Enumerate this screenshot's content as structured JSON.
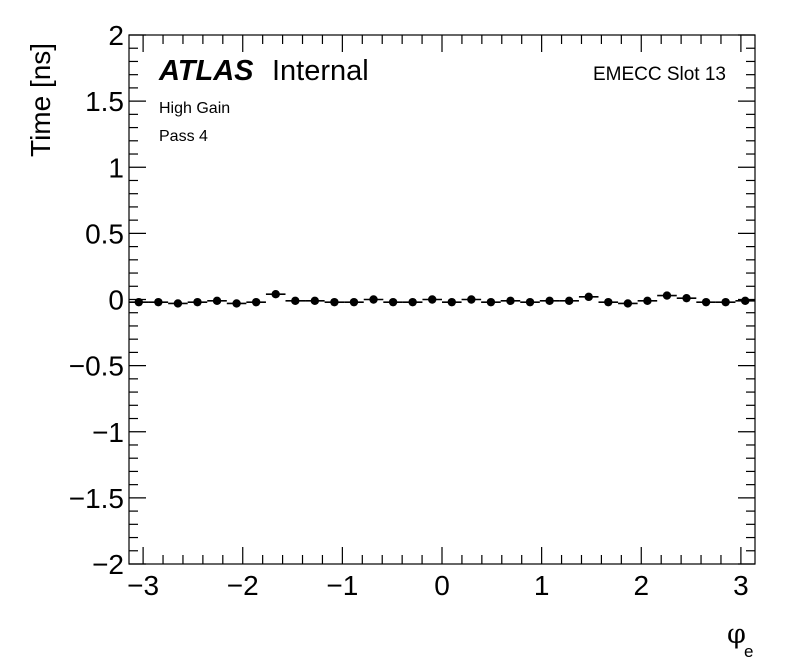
{
  "chart_data": {
    "type": "scatter",
    "title": "",
    "xlabel": "φ",
    "xlabel_subscript": "e",
    "ylabel": "Time [ns]",
    "xlim": [
      -3.1416,
      3.1416
    ],
    "ylim": [
      -2,
      2
    ],
    "x_ticks": [
      -3,
      -2,
      -1,
      0,
      1,
      2,
      3
    ],
    "x_tick_labels": [
      "−3",
      "−2",
      "−1",
      "0",
      "1",
      "2",
      "3"
    ],
    "y_ticks": [
      -2,
      -1.5,
      -1,
      -0.5,
      0,
      0.5,
      1,
      1.5,
      2
    ],
    "y_tick_labels": [
      "−2",
      "−1.5",
      "−1",
      "−0.5",
      "0",
      "0.5",
      "1",
      "1.5",
      "2"
    ],
    "grid": false,
    "legend": "none",
    "annotations": {
      "atlas": "ATLAS",
      "internal": "Internal",
      "line1": "High Gain",
      "line2": "Pass 4",
      "slot": "EMECC Slot 13"
    },
    "marker_color": "#000000",
    "series": [
      {
        "x": [
          -3.0434,
          -2.8471,
          -2.6507,
          -2.4544,
          -2.258,
          -2.0617,
          -1.8653,
          -1.669,
          -1.4726,
          -1.2763,
          -1.0799,
          -0.8836,
          -0.6872,
          -0.4909,
          -0.2945,
          -0.0982,
          0.0982,
          0.2945,
          0.4909,
          0.6872,
          0.8836,
          1.0799,
          1.2763,
          1.4726,
          1.669,
          1.8653,
          2.0617,
          2.258,
          2.4544,
          2.6507,
          2.8471,
          3.0434
        ],
        "y": [
          -0.02,
          -0.02,
          -0.03,
          -0.02,
          -0.01,
          -0.03,
          -0.02,
          0.04,
          -0.01,
          -0.01,
          -0.02,
          -0.02,
          0.0,
          -0.02,
          -0.02,
          0.0,
          -0.02,
          0.0,
          -0.02,
          -0.01,
          -0.02,
          -0.01,
          -0.01,
          0.02,
          -0.02,
          -0.03,
          -0.01,
          0.03,
          0.01,
          -0.02,
          -0.02,
          -0.01
        ],
        "xerr": 0.0982
      }
    ]
  }
}
